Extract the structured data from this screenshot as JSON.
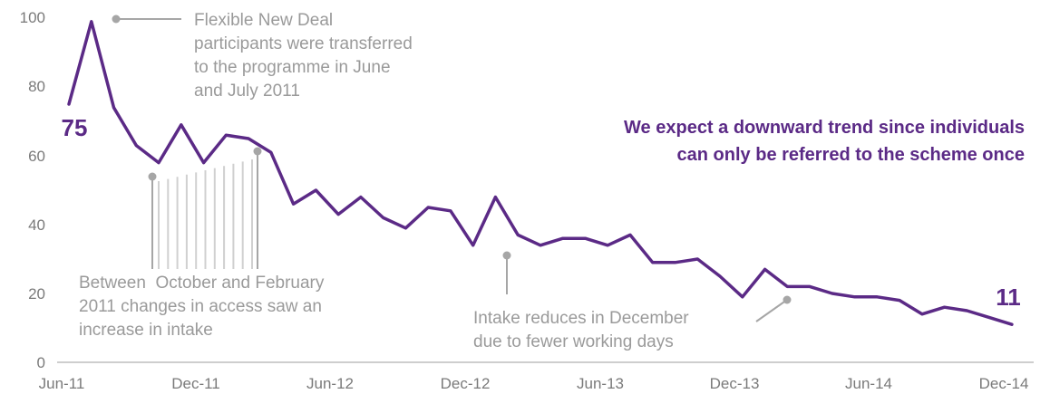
{
  "chart_data": {
    "type": "line",
    "ylim": [
      0,
      100
    ],
    "y_ticks": [
      "0",
      "20",
      "40",
      "60",
      "80",
      "100"
    ],
    "x_tick_labels": [
      "Jun-11",
      "Dec-11",
      "Jun-12",
      "Dec-12",
      "Jun-13",
      "Dec-13",
      "Jun-14",
      "Dec-14"
    ],
    "grid": false,
    "legend": "none",
    "series_color": "#5b2a86",
    "annotation_color": "#9a9a9a",
    "series": [
      {
        "values": [
          75,
          99,
          74,
          63,
          58,
          69,
          58,
          66,
          65,
          61,
          46,
          50,
          43,
          48,
          42,
          39,
          45,
          44,
          34,
          48,
          37,
          34,
          36,
          36,
          34,
          37,
          29,
          29,
          30,
          25,
          19,
          27,
          22,
          22,
          20,
          19,
          19,
          18,
          14,
          16,
          15,
          13,
          11
        ]
      }
    ],
    "start_label": "75",
    "end_label": "11",
    "annotations": {
      "flexible_new_deal": [
        "Flexible New Deal",
        "participants were transferred",
        "to the programme in June",
        "and July 2011"
      ],
      "between": [
        "Between  October and February",
        "2011 changes in access saw an",
        "increase in intake"
      ],
      "december": [
        "Intake reduces in December",
        "due to fewer working days"
      ],
      "trend": [
        "We expect a downward trend since individuals",
        "can only be referred to the scheme once"
      ]
    }
  }
}
